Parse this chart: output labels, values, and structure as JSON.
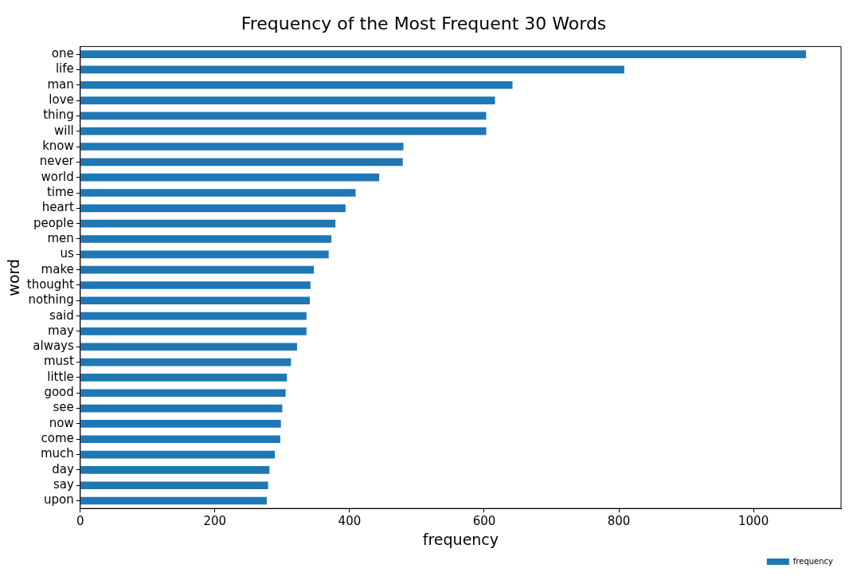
{
  "chart_data": {
    "type": "bar",
    "orientation": "horizontal",
    "title": "Frequency of the Most Frequent 30 Words",
    "xlabel": "frequency",
    "ylabel": "word",
    "categories": [
      "one",
      "life",
      "man",
      "love",
      "thing",
      "will",
      "know",
      "never",
      "world",
      "time",
      "heart",
      "people",
      "men",
      "us",
      "make",
      "thought",
      "nothing",
      "said",
      "may",
      "always",
      "must",
      "little",
      "good",
      "see",
      "now",
      "come",
      "much",
      "day",
      "say",
      "upon"
    ],
    "series": [
      {
        "name": "frequency",
        "color": "#1f77b4",
        "values": [
          1078,
          808,
          642,
          616,
          603,
          603,
          480,
          479,
          444,
          409,
          394,
          379,
          373,
          369,
          347,
          342,
          341,
          336,
          336,
          322,
          313,
          307,
          305,
          300,
          298,
          297,
          289,
          281,
          279,
          277
        ]
      }
    ],
    "xlim": [
      0,
      1130
    ],
    "xticks": [
      0,
      200,
      400,
      600,
      800,
      1000
    ],
    "grid": false,
    "legend": "bottom right"
  }
}
